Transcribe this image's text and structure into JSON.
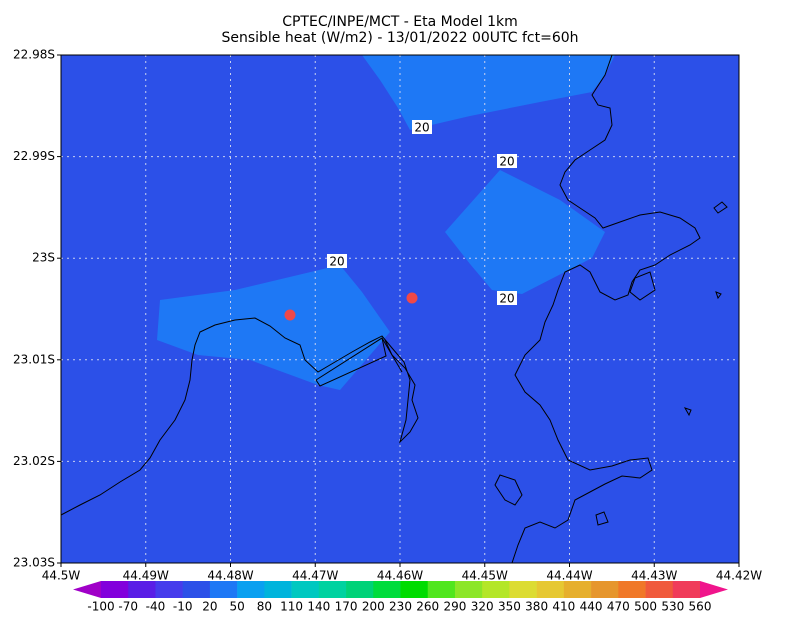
{
  "chart_data": {
    "type": "contour-map",
    "title": "CPTEC/INPE/MCT -  Eta Model 1km",
    "subtitle": "Sensible heat (W/m2) - 13/01/2022 00UTC fct=60h",
    "xlim": [
      -44.5,
      -44.42
    ],
    "ylim": [
      -23.03,
      -22.98
    ],
    "xticks": [
      {
        "value": -44.5,
        "label": "44.5W"
      },
      {
        "value": -44.49,
        "label": "44.49W"
      },
      {
        "value": -44.48,
        "label": "44.48W"
      },
      {
        "value": -44.47,
        "label": "44.47W"
      },
      {
        "value": -44.46,
        "label": "44.46W"
      },
      {
        "value": -44.45,
        "label": "44.45W"
      },
      {
        "value": -44.44,
        "label": "44.44W"
      },
      {
        "value": -44.43,
        "label": "44.43W"
      },
      {
        "value": -44.42,
        "label": "44.42W"
      }
    ],
    "yticks": [
      {
        "value": -22.98,
        "label": "22.98S"
      },
      {
        "value": -22.99,
        "label": "22.99S"
      },
      {
        "value": -23,
        "label": "23S"
      },
      {
        "value": -23.01,
        "label": "23.01S"
      },
      {
        "value": -23.02,
        "label": "23.02S"
      },
      {
        "value": -23.03,
        "label": "23.03S"
      }
    ],
    "grid": true,
    "contour_labels": [
      20,
      20,
      20,
      20
    ],
    "marker_color": "#f04848",
    "colorbar": {
      "levels": [
        -100,
        -70,
        -40,
        -10,
        20,
        50,
        80,
        110,
        140,
        170,
        200,
        230,
        260,
        290,
        320,
        350,
        380,
        410,
        440,
        470,
        500,
        530,
        560
      ],
      "colors": [
        "#a000c8",
        "#8200dc",
        "#5a1ee6",
        "#463cec",
        "#2c50e8",
        "#1e78f5",
        "#0aa0f0",
        "#00b4dc",
        "#00c8c0",
        "#00d2a0",
        "#00d278",
        "#00dc3c",
        "#00dc00",
        "#50e61e",
        "#8ce628",
        "#b4e628",
        "#dcdc32",
        "#e6c832",
        "#e6af2d",
        "#e6962d",
        "#f07828",
        "#f05a3c",
        "#f03c5a",
        "#f0148c"
      ]
    }
  }
}
